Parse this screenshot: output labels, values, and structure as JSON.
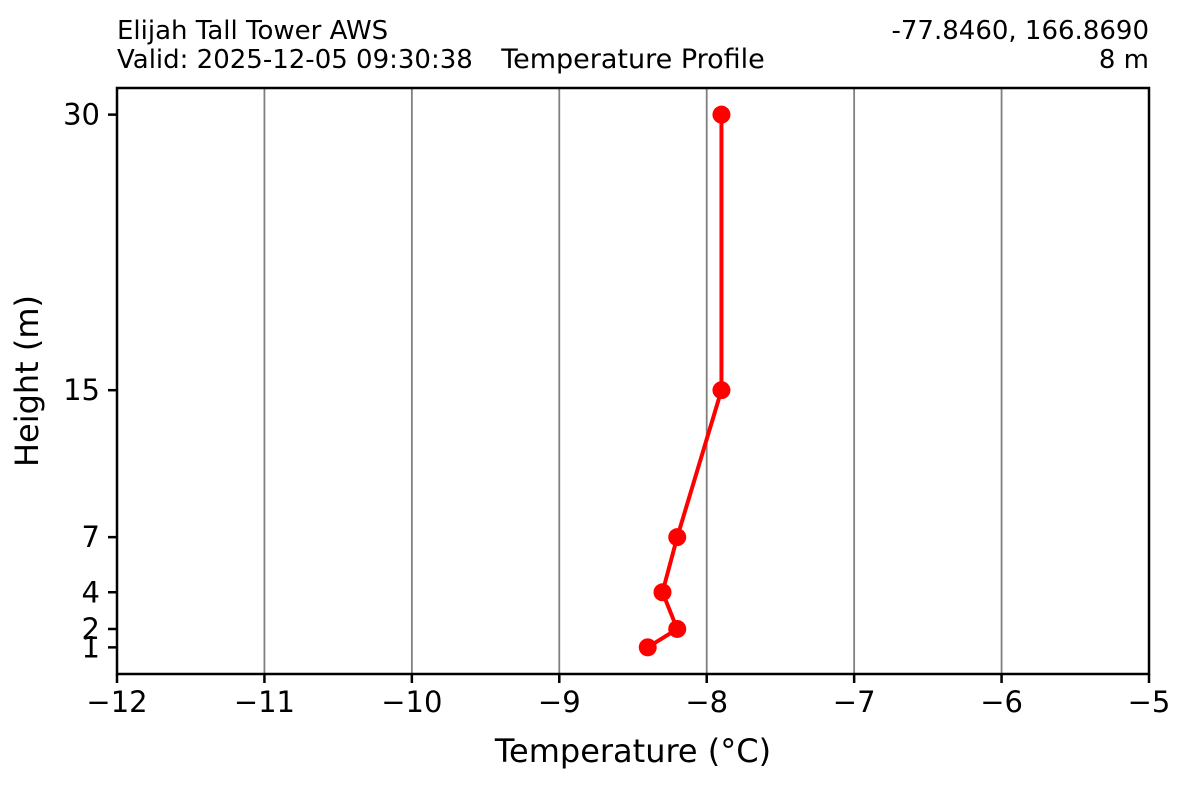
{
  "header": {
    "station_name": "Elijah Tall Tower AWS",
    "valid_time": "Valid: 2025-12-05 09:30:38",
    "title": "Temperature Profile",
    "coordinates": "-77.8460, 166.8690",
    "elevation": "8 m"
  },
  "chart_data": {
    "type": "line",
    "title": "Temperature Profile",
    "xlabel": "Temperature (°C)",
    "ylabel": "Height (m)",
    "series": [
      {
        "name": "temperature-profile",
        "x": [
          -8.4,
          -8.2,
          -8.3,
          -8.2,
          -7.9,
          -7.9
        ],
        "y": [
          1,
          2,
          4,
          7,
          15,
          30
        ]
      }
    ],
    "xlim": [
      -12,
      -5
    ],
    "ylim": [
      -0.45,
      31.45
    ],
    "xticks": [
      -12,
      -11,
      -10,
      -9,
      -8,
      -7,
      -6,
      -5
    ],
    "yticks": [
      1,
      2,
      4,
      7,
      15,
      30
    ],
    "grid": "vertical",
    "legend": "none",
    "line_color": "#ff0000",
    "marker": "circle",
    "marker_radius": 9,
    "line_width": 4,
    "grid_color": "#808080",
    "spine_color": "#000000",
    "text_color": "#000000"
  }
}
